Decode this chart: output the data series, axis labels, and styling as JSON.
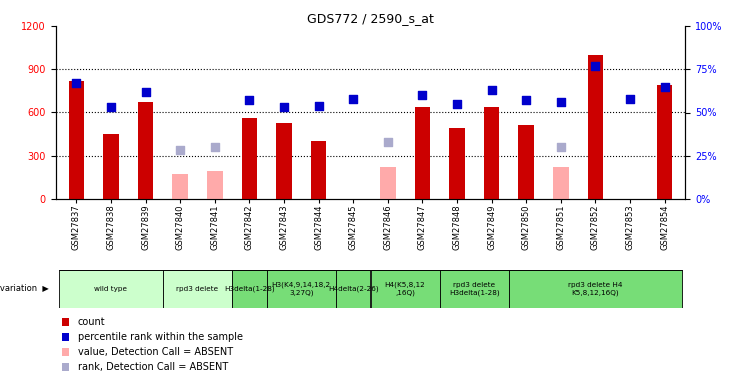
{
  "title": "GDS772 / 2590_s_at",
  "samples": [
    "GSM27837",
    "GSM27838",
    "GSM27839",
    "GSM27840",
    "GSM27841",
    "GSM27842",
    "GSM27843",
    "GSM27844",
    "GSM27845",
    "GSM27846",
    "GSM27847",
    "GSM27848",
    "GSM27849",
    "GSM27850",
    "GSM27851",
    "GSM27852",
    "GSM27853",
    "GSM27854"
  ],
  "counts": [
    820,
    450,
    670,
    null,
    null,
    560,
    530,
    400,
    null,
    null,
    640,
    490,
    640,
    510,
    null,
    1000,
    null,
    790
  ],
  "counts_absent": [
    null,
    null,
    null,
    175,
    190,
    null,
    null,
    null,
    null,
    220,
    null,
    null,
    null,
    null,
    220,
    null,
    null,
    null
  ],
  "ranks": [
    67,
    53,
    62,
    null,
    null,
    57,
    53,
    54,
    58,
    null,
    60,
    55,
    63,
    57,
    56,
    77,
    58,
    65
  ],
  "ranks_absent": [
    null,
    null,
    null,
    28,
    30,
    null,
    null,
    null,
    null,
    33,
    null,
    null,
    null,
    null,
    30,
    null,
    null,
    null
  ],
  "ylim_left": [
    0,
    1200
  ],
  "ylim_right": [
    0,
    100
  ],
  "yticks_left": [
    0,
    300,
    600,
    900,
    1200
  ],
  "ytick_labels_right": [
    "0%",
    "25%",
    "50%",
    "75%",
    "100%"
  ],
  "bar_color": "#cc0000",
  "bar_absent_color": "#ffaaaa",
  "rank_color": "#0000cc",
  "rank_absent_color": "#aaaacc",
  "bg_color": "#ffffff",
  "genotype_groups": [
    {
      "label": "wild type",
      "start": 0,
      "end": 3,
      "color": "#ccffcc"
    },
    {
      "label": "rpd3 delete",
      "start": 3,
      "end": 5,
      "color": "#ccffcc"
    },
    {
      "label": "H3delta(1-28)",
      "start": 5,
      "end": 6,
      "color": "#77dd77"
    },
    {
      "label": "H3(K4,9,14,18,2\n3,27Q)",
      "start": 6,
      "end": 8,
      "color": "#77dd77"
    },
    {
      "label": "H4delta(2-26)",
      "start": 8,
      "end": 9,
      "color": "#77dd77"
    },
    {
      "label": "H4(K5,8,12\n,16Q)",
      "start": 9,
      "end": 11,
      "color": "#77dd77"
    },
    {
      "label": "rpd3 delete\nH3delta(1-28)",
      "start": 11,
      "end": 13,
      "color": "#77dd77"
    },
    {
      "label": "rpd3 delete H4\nK5,8,12,16Q)",
      "start": 13,
      "end": 18,
      "color": "#77dd77"
    }
  ],
  "rank_marker_size": 40,
  "bar_width": 0.45,
  "legend_items": [
    {
      "label": "count",
      "color": "#cc0000"
    },
    {
      "label": "percentile rank within the sample",
      "color": "#0000cc"
    },
    {
      "label": "value, Detection Call = ABSENT",
      "color": "#ffaaaa"
    },
    {
      "label": "rank, Detection Call = ABSENT",
      "color": "#aaaacc"
    }
  ],
  "fig_width": 7.41,
  "fig_height": 3.75,
  "dpi": 100
}
